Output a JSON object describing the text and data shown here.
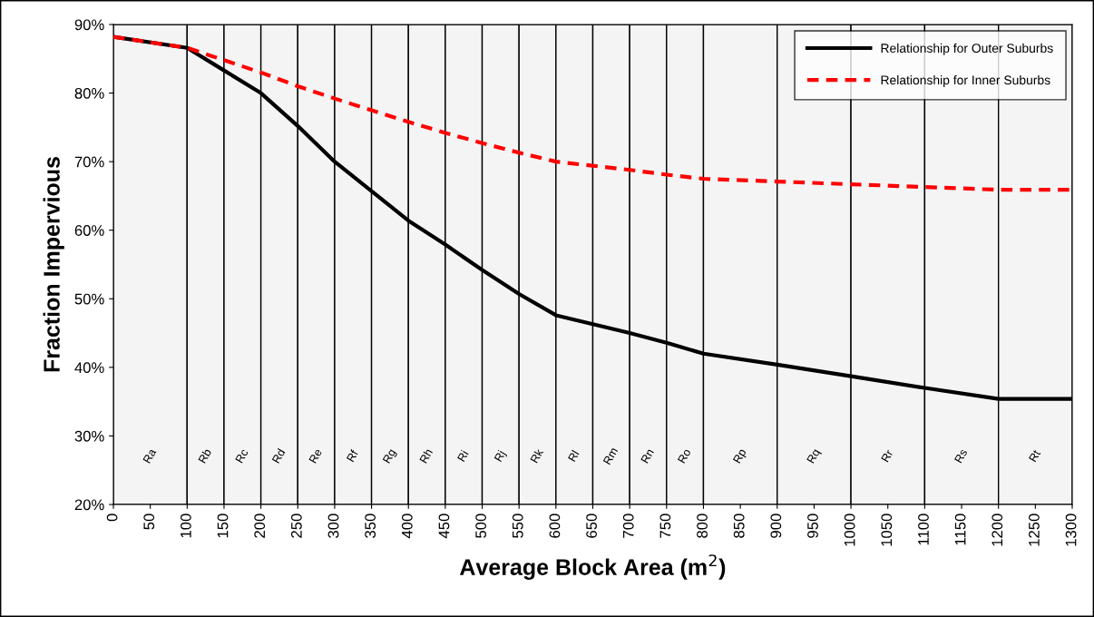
{
  "chart_data": {
    "type": "line",
    "xlabel": "Average Block Area (m$^{2}$)",
    "ylabel": "Fraction Impervious",
    "x": [
      0,
      100,
      150,
      200,
      250,
      300,
      350,
      400,
      450,
      500,
      550,
      600,
      650,
      700,
      750,
      800,
      900,
      1000,
      1100,
      1200,
      1300
    ],
    "series": [
      {
        "name": "Relationship for Outer Suburbs",
        "color": "#000000",
        "line_style": "solid",
        "values": [
          88.2,
          86.6,
          83.3,
          80,
          75.2,
          70,
          65.7,
          61.4,
          57.9,
          54.2,
          50.7,
          47.6,
          46.3,
          45,
          43.6,
          42,
          40.4,
          38.7,
          37,
          35.4,
          35.4
        ]
      },
      {
        "name": "Relationship for Inner Suburbs",
        "color": "#ff0000",
        "line_style": "dashed",
        "values": [
          88.2,
          86.6,
          84.8,
          83,
          81,
          79.2,
          77.5,
          75.8,
          74.2,
          72.7,
          71.3,
          70,
          69.4,
          68.8,
          68.1,
          67.5,
          67.1,
          66.7,
          66.3,
          65.9,
          65.9
        ]
      }
    ],
    "xlim": [
      0,
      1300
    ],
    "xticks": [
      0,
      50,
      100,
      150,
      200,
      250,
      300,
      350,
      400,
      450,
      500,
      550,
      600,
      650,
      700,
      750,
      800,
      850,
      900,
      950,
      1000,
      1050,
      1100,
      1150,
      1200,
      1250,
      1300
    ],
    "ylim": [
      20,
      90
    ],
    "yticks": [
      {
        "value": 20,
        "label": "20%"
      },
      {
        "value": 30,
        "label": "30%"
      },
      {
        "value": 40,
        "label": "40%"
      },
      {
        "value": 50,
        "label": "50%"
      },
      {
        "value": 60,
        "label": "60%"
      },
      {
        "value": 70,
        "label": "70%"
      },
      {
        "value": 80,
        "label": "80%"
      },
      {
        "value": 90,
        "label": "90%"
      }
    ],
    "bands": [
      {
        "axis": "x",
        "from": 0,
        "to": 100,
        "label": "Ra"
      },
      {
        "axis": "x",
        "from": 100,
        "to": 150,
        "label": "Rb"
      },
      {
        "axis": "x",
        "from": 150,
        "to": 200,
        "label": "Rc"
      },
      {
        "axis": "x",
        "from": 200,
        "to": 250,
        "label": "Rd"
      },
      {
        "axis": "x",
        "from": 250,
        "to": 300,
        "label": "Re"
      },
      {
        "axis": "x",
        "from": 300,
        "to": 350,
        "label": "Rf"
      },
      {
        "axis": "x",
        "from": 350,
        "to": 400,
        "label": "Rg"
      },
      {
        "axis": "x",
        "from": 400,
        "to": 450,
        "label": "Rh"
      },
      {
        "axis": "x",
        "from": 450,
        "to": 500,
        "label": "Ri"
      },
      {
        "axis": "x",
        "from": 500,
        "to": 550,
        "label": "Rj"
      },
      {
        "axis": "x",
        "from": 550,
        "to": 600,
        "label": "Rk"
      },
      {
        "axis": "x",
        "from": 600,
        "to": 650,
        "label": "Rl"
      },
      {
        "axis": "x",
        "from": 650,
        "to": 700,
        "label": "Rm"
      },
      {
        "axis": "x",
        "from": 700,
        "to": 750,
        "label": "Rn"
      },
      {
        "axis": "x",
        "from": 750,
        "to": 800,
        "label": "Ro"
      },
      {
        "axis": "x",
        "from": 800,
        "to": 900,
        "label": "Rp"
      },
      {
        "axis": "x",
        "from": 900,
        "to": 1000,
        "label": "Rq"
      },
      {
        "axis": "x",
        "from": 1000,
        "to": 1100,
        "label": "Rr"
      },
      {
        "axis": "x",
        "from": 1100,
        "to": 1200,
        "label": "Rs"
      },
      {
        "axis": "x",
        "from": 1200,
        "to": 1300,
        "label": "Rt"
      }
    ],
    "grid": false,
    "legend": "top right",
    "marker": "none"
  }
}
